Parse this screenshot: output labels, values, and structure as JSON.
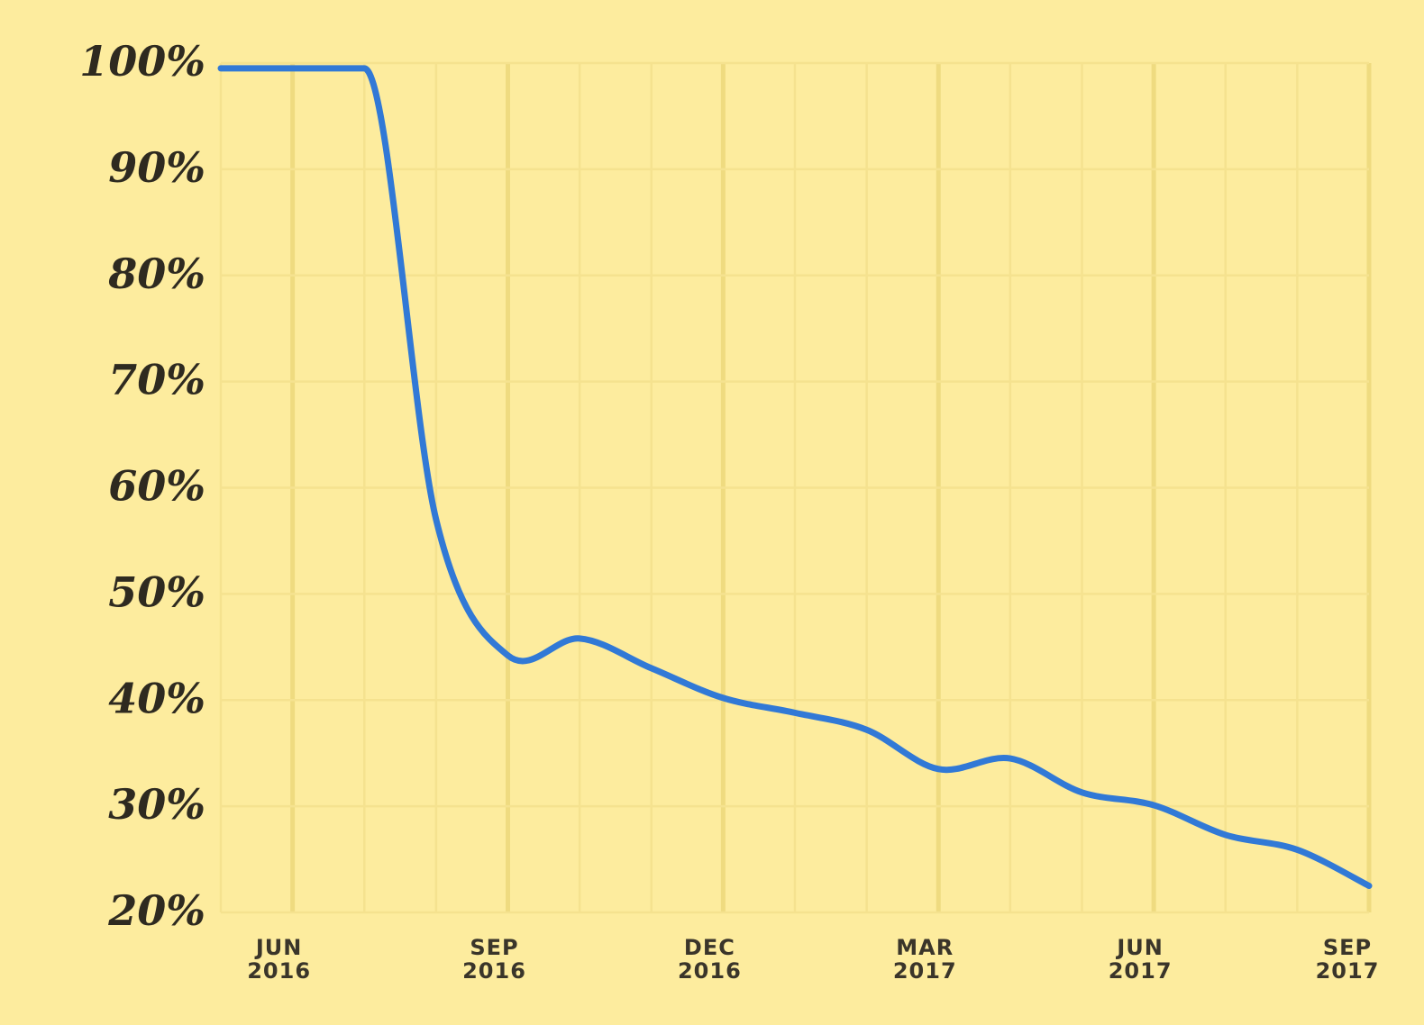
{
  "chart_data": {
    "type": "line",
    "title": "",
    "xlabel": "",
    "ylabel": "",
    "ylim": [
      20,
      100
    ],
    "xlim": [
      "2016-05",
      "2017-09"
    ],
    "grid": true,
    "y_ticks": [
      "20%",
      "30%",
      "40%",
      "50%",
      "60%",
      "70%",
      "80%",
      "90%",
      "100%"
    ],
    "y_tick_values": [
      20,
      30,
      40,
      50,
      60,
      70,
      80,
      90,
      100
    ],
    "x_ticks": [
      {
        "month": "2016-06",
        "line1": "JUN",
        "line2": "2016"
      },
      {
        "month": "2016-09",
        "line1": "SEP",
        "line2": "2016"
      },
      {
        "month": "2016-12",
        "line1": "DEC",
        "line2": "2016"
      },
      {
        "month": "2017-03",
        "line1": "MAR",
        "line2": "2017"
      },
      {
        "month": "2017-06",
        "line1": "JUN",
        "line2": "2017"
      },
      {
        "month": "2017-09",
        "line1": "SEP",
        "line2": "2017"
      }
    ],
    "series": [
      {
        "color": "#3179d6",
        "points": [
          [
            "2016-05",
            99.5
          ],
          [
            "2016-06",
            99.5
          ],
          [
            "2016-07",
            99.5
          ],
          [
            "2016-08",
            57
          ],
          [
            "2016-09",
            44.2
          ],
          [
            "2016-10",
            45.8
          ],
          [
            "2016-11",
            43
          ],
          [
            "2016-12",
            40.2
          ],
          [
            "2017-01",
            38.8
          ],
          [
            "2017-02",
            37.2
          ],
          [
            "2017-03",
            33.5
          ],
          [
            "2017-04",
            34.5
          ],
          [
            "2017-05",
            31.3
          ],
          [
            "2017-06",
            30.1
          ],
          [
            "2017-07",
            27.3
          ],
          [
            "2017-08",
            25.9
          ],
          [
            "2017-09",
            22.5
          ]
        ]
      }
    ],
    "colors": {
      "background": "#fdec9e",
      "grid": "#f5e28f",
      "grid_major": "#efdb80",
      "line": "#3179d6",
      "text": "#2e2a20"
    }
  }
}
